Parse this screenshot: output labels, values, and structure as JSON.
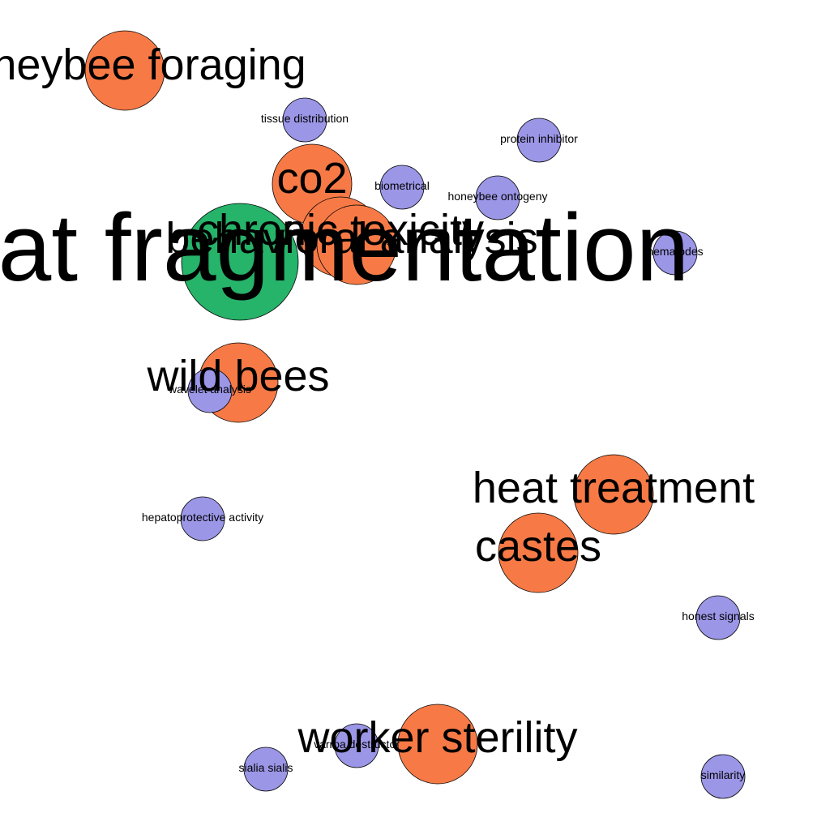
{
  "palette": {
    "orange": "#f77a46",
    "green": "#26b36a",
    "purple": "#9b96e6",
    "background": "#ffffff"
  },
  "nodes": [
    {
      "id": "honeybee-foraging",
      "label": "honeybee foraging",
      "color": "orange"
    },
    {
      "id": "tissue-distribution",
      "label": "tissue distribution",
      "color": "purple"
    },
    {
      "id": "protein-inhibitor",
      "label": "protein inhibitor",
      "color": "purple"
    },
    {
      "id": "co2",
      "label": "co2",
      "color": "orange"
    },
    {
      "id": "biometrical",
      "label": "biometrical",
      "color": "purple"
    },
    {
      "id": "honeybee-ontogeny",
      "label": "honeybee ontogeny",
      "color": "purple"
    },
    {
      "id": "habitat-fragmentation",
      "label": "habitat fragmentation",
      "color": "green"
    },
    {
      "id": "chronic-toxicity",
      "label": "chronic toxicity",
      "color": "orange"
    },
    {
      "id": "behavioral-analysis",
      "label": "behavioral analysis",
      "color": "orange"
    },
    {
      "id": "nematodes",
      "label": "nematodes",
      "color": "purple"
    },
    {
      "id": "wild-bees",
      "label": "wild bees",
      "color": "orange"
    },
    {
      "id": "wavelet-analysis",
      "label": "wavelet analysis",
      "color": "purple"
    },
    {
      "id": "heat-treatment",
      "label": "heat treatment",
      "color": "orange"
    },
    {
      "id": "hepatoprotective-activity",
      "label": "hepatoprotective activity",
      "color": "purple"
    },
    {
      "id": "castes",
      "label": "castes",
      "color": "orange"
    },
    {
      "id": "honest-signals",
      "label": "honest signals",
      "color": "purple"
    },
    {
      "id": "worker-sterility",
      "label": "worker sterility",
      "color": "orange"
    },
    {
      "id": "varroa-destructor",
      "label": "varroa destructor",
      "color": "purple"
    },
    {
      "id": "sialia-sialis",
      "label": "sialia sialis",
      "color": "purple"
    },
    {
      "id": "similarity",
      "label": "similarity",
      "color": "purple"
    }
  ]
}
